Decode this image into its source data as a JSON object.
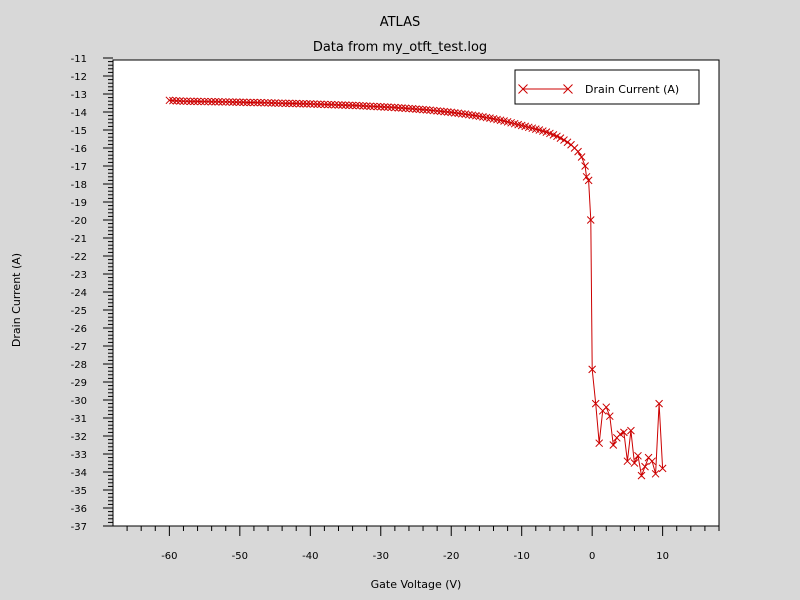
{
  "chart_data": {
    "type": "line",
    "title": "ATLAS",
    "subtitle": "Data from my_otft_test.log",
    "xlabel": "Gate Voltage (V)",
    "ylabel": "Drain Current (A)",
    "xlim": [
      -68,
      18
    ],
    "ylim": [
      -37,
      -11
    ],
    "x_ticks": [
      -60,
      -50,
      -40,
      -30,
      -20,
      -10,
      0,
      10
    ],
    "x_tick_labels": [
      "-60",
      "-50",
      "-40",
      "-30",
      "-20",
      "-10",
      "0",
      "10"
    ],
    "y_ticks": [
      -11,
      -12,
      -13,
      -14,
      -15,
      -16,
      -17,
      -18,
      -19,
      -20,
      -21,
      -22,
      -23,
      -24,
      -25,
      -26,
      -27,
      -28,
      -29,
      -30,
      -31,
      -32,
      -33,
      -34,
      -35,
      -36,
      -37
    ],
    "y_tick_labels": [
      "-11",
      "-12",
      "-13",
      "-14",
      "-15",
      "-16",
      "-17",
      "-18",
      "-19",
      "-20",
      "-21",
      "-22",
      "-23",
      "-24",
      "-25",
      "-26",
      "-27",
      "-28",
      "-29",
      "-30",
      "-31",
      "-32",
      "-33",
      "-34",
      "-35",
      "-36",
      "-37"
    ],
    "legend": {
      "position": "top-right",
      "entries": [
        "Drain Current (A)"
      ]
    },
    "series": [
      {
        "name": "Drain Current (A)",
        "color": "#cc0000",
        "marker": "x",
        "points": [
          [
            -60,
            -13.35
          ],
          [
            -59.5,
            -13.37
          ],
          [
            -59,
            -13.38
          ],
          [
            -58.5,
            -13.39
          ],
          [
            -58,
            -13.4
          ],
          [
            -57.5,
            -13.4
          ],
          [
            -57,
            -13.41
          ],
          [
            -56.5,
            -13.41
          ],
          [
            -56,
            -13.41
          ],
          [
            -55.5,
            -13.42
          ],
          [
            -55,
            -13.42
          ],
          [
            -54.5,
            -13.42
          ],
          [
            -54,
            -13.43
          ],
          [
            -53.5,
            -13.43
          ],
          [
            -53,
            -13.43
          ],
          [
            -52.5,
            -13.44
          ],
          [
            -52,
            -13.44
          ],
          [
            -51.5,
            -13.44
          ],
          [
            -51,
            -13.45
          ],
          [
            -50.5,
            -13.45
          ],
          [
            -50,
            -13.46
          ],
          [
            -49.5,
            -13.46
          ],
          [
            -49,
            -13.47
          ],
          [
            -48.5,
            -13.47
          ],
          [
            -48,
            -13.47
          ],
          [
            -47.5,
            -13.48
          ],
          [
            -47,
            -13.48
          ],
          [
            -46.5,
            -13.49
          ],
          [
            -46,
            -13.49
          ],
          [
            -45.5,
            -13.5
          ],
          [
            -45,
            -13.5
          ],
          [
            -44.5,
            -13.51
          ],
          [
            -44,
            -13.51
          ],
          [
            -43.5,
            -13.52
          ],
          [
            -43,
            -13.52
          ],
          [
            -42.5,
            -13.53
          ],
          [
            -42,
            -13.53
          ],
          [
            -41.5,
            -13.54
          ],
          [
            -41,
            -13.54
          ],
          [
            -40.5,
            -13.55
          ],
          [
            -40,
            -13.55
          ],
          [
            -39.5,
            -13.56
          ],
          [
            -39,
            -13.57
          ],
          [
            -38.5,
            -13.57
          ],
          [
            -38,
            -13.58
          ],
          [
            -37.5,
            -13.59
          ],
          [
            -37,
            -13.59
          ],
          [
            -36.5,
            -13.6
          ],
          [
            -36,
            -13.61
          ],
          [
            -35.5,
            -13.61
          ],
          [
            -35,
            -13.62
          ],
          [
            -34.5,
            -13.63
          ],
          [
            -34,
            -13.63
          ],
          [
            -33.5,
            -13.64
          ],
          [
            -33,
            -13.65
          ],
          [
            -32.5,
            -13.66
          ],
          [
            -32,
            -13.67
          ],
          [
            -31.5,
            -13.68
          ],
          [
            -31,
            -13.69
          ],
          [
            -30.5,
            -13.7
          ],
          [
            -30,
            -13.71
          ],
          [
            -29.5,
            -13.72
          ],
          [
            -29,
            -13.73
          ],
          [
            -28.5,
            -13.74
          ],
          [
            -28,
            -13.75
          ],
          [
            -27.5,
            -13.77
          ],
          [
            -27,
            -13.78
          ],
          [
            -26.5,
            -13.79
          ],
          [
            -26,
            -13.81
          ],
          [
            -25.5,
            -13.82
          ],
          [
            -25,
            -13.84
          ],
          [
            -24.5,
            -13.85
          ],
          [
            -24,
            -13.87
          ],
          [
            -23.5,
            -13.88
          ],
          [
            -23,
            -13.9
          ],
          [
            -22.5,
            -13.92
          ],
          [
            -22,
            -13.94
          ],
          [
            -21.5,
            -13.96
          ],
          [
            -21,
            -13.98
          ],
          [
            -20.5,
            -14.0
          ],
          [
            -20,
            -14.02
          ],
          [
            -19.5,
            -14.05
          ],
          [
            -19,
            -14.07
          ],
          [
            -18.5,
            -14.1
          ],
          [
            -18,
            -14.12
          ],
          [
            -17.5,
            -14.15
          ],
          [
            -17,
            -14.18
          ],
          [
            -16.5,
            -14.21
          ],
          [
            -16,
            -14.24
          ],
          [
            -15.5,
            -14.27
          ],
          [
            -15,
            -14.31
          ],
          [
            -14.5,
            -14.34
          ],
          [
            -14,
            -14.38
          ],
          [
            -13.5,
            -14.42
          ],
          [
            -13,
            -14.46
          ],
          [
            -12.5,
            -14.5
          ],
          [
            -12,
            -14.55
          ],
          [
            -11.5,
            -14.6
          ],
          [
            -11,
            -14.65
          ],
          [
            -10.5,
            -14.7
          ],
          [
            -10,
            -14.75
          ],
          [
            -9.5,
            -14.8
          ],
          [
            -9,
            -14.85
          ],
          [
            -8.5,
            -14.9
          ],
          [
            -8,
            -14.95
          ],
          [
            -7.5,
            -15.0
          ],
          [
            -7,
            -15.06
          ],
          [
            -6.5,
            -15.12
          ],
          [
            -6,
            -15.19
          ],
          [
            -5.5,
            -15.27
          ],
          [
            -5,
            -15.35
          ],
          [
            -4.5,
            -15.45
          ],
          [
            -4,
            -15.56
          ],
          [
            -3.5,
            -15.68
          ],
          [
            -3,
            -15.82
          ],
          [
            -2.5,
            -16.0
          ],
          [
            -2,
            -16.2
          ],
          [
            -1.5,
            -16.5
          ],
          [
            -1,
            -17.0
          ],
          [
            -0.8,
            -17.6
          ],
          [
            -0.5,
            -17.8
          ],
          [
            -0.2,
            -20.0
          ],
          [
            0,
            -28.3
          ],
          [
            0.5,
            -30.2
          ],
          [
            1,
            -32.4
          ],
          [
            1.5,
            -30.6
          ],
          [
            2,
            -30.4
          ],
          [
            2.5,
            -30.9
          ],
          [
            3,
            -32.5
          ],
          [
            3.5,
            -32.1
          ],
          [
            4,
            -31.9
          ],
          [
            4.5,
            -31.8
          ],
          [
            5,
            -33.4
          ],
          [
            5.5,
            -31.7
          ],
          [
            6,
            -33.5
          ],
          [
            6.5,
            -33.1
          ],
          [
            7,
            -34.2
          ],
          [
            7.5,
            -33.7
          ],
          [
            8,
            -33.2
          ],
          [
            8.5,
            -33.4
          ],
          [
            9,
            -34.1
          ],
          [
            9.5,
            -30.2
          ],
          [
            10,
            -33.8
          ]
        ]
      }
    ]
  }
}
